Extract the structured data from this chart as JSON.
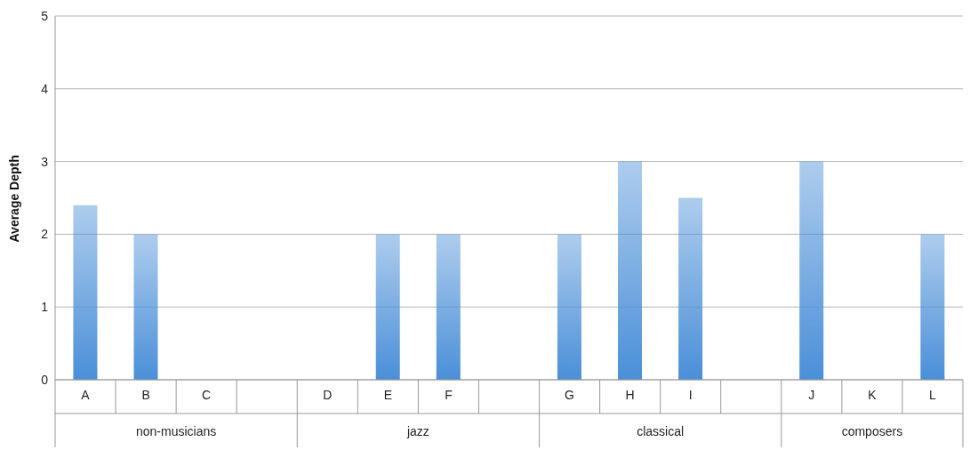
{
  "chart_data": {
    "type": "bar",
    "ylabel": "Average Depth",
    "categories": [
      "A",
      "B",
      "C",
      null,
      "D",
      "E",
      "F",
      null,
      "G",
      "H",
      "I",
      null,
      "J",
      "K",
      "L"
    ],
    "values": [
      2.4,
      2,
      null,
      null,
      null,
      2,
      2,
      null,
      2,
      3,
      2.5,
      null,
      3,
      null,
      2
    ],
    "color": "#4a8fd8",
    "ylim": [
      0,
      5
    ],
    "yticks": [
      0,
      1,
      2,
      3,
      4,
      5
    ],
    "grid": "y",
    "legend": false,
    "annotations": [
      "non-musicians",
      "jazz",
      "classical",
      "composers"
    ]
  }
}
